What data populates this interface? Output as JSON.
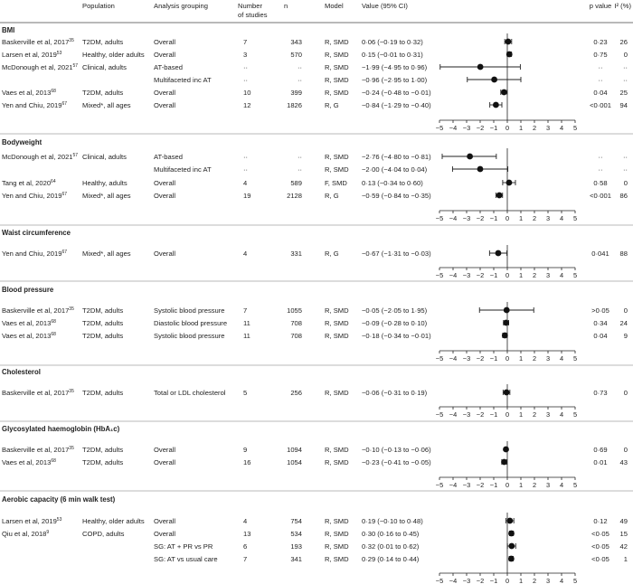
{
  "header": {
    "population": "Population",
    "analysis": "Analysis grouping",
    "studies": [
      "Number",
      "of studies"
    ],
    "n": "n",
    "model": "Model",
    "value": "Value (95% CI)",
    "pvalue": "p value",
    "i2": "I² (%)"
  },
  "axis": {
    "ticks": [
      -5,
      -4,
      -3,
      -2,
      -1,
      0,
      1,
      2,
      3,
      4,
      5
    ]
  },
  "sections": [
    {
      "title": "BMI",
      "rows": [
        {
          "study": "Baskerville et al, 2017",
          "ref": "35",
          "population": "T2DM, adults",
          "analysis": "Overall",
          "studies": "7",
          "n": "343",
          "model": "R, SMD",
          "value": "0·06 (−0·19 to 0·32)",
          "p": "0·23",
          "i2": "26",
          "est": 0.06,
          "lo": -0.19,
          "hi": 0.32
        },
        {
          "study": "Larsen et al, 2019",
          "ref": "53",
          "population": "Healthy, older adults",
          "analysis": "Overall",
          "studies": "3",
          "n": "570",
          "model": "R, SMD",
          "value": "0·15 (−0·01 to 0·31)",
          "p": "0·75",
          "i2": "0",
          "est": 0.15,
          "lo": -0.01,
          "hi": 0.31
        },
        {
          "study": "McDonough et al, 2021",
          "ref": "57",
          "population": "Clinical, adults",
          "analysis": "AT-based",
          "studies": "··",
          "n": "··",
          "model": "R, SMD",
          "value": "−1·99 (−4·95 to 0·96)",
          "p": "··",
          "i2": "··",
          "est": -1.99,
          "lo": -4.95,
          "hi": 0.96
        },
        {
          "study": "",
          "ref": "",
          "population": "",
          "analysis": "Multifaceted inc AT",
          "studies": "··",
          "n": "··",
          "model": "R, SMD",
          "value": "−0·96 (−2·95 to 1·00)",
          "p": "··",
          "i2": "··",
          "est": -0.96,
          "lo": -2.95,
          "hi": 1.0
        },
        {
          "study": "Vaes et al, 2013",
          "ref": "68",
          "population": "T2DM, adults",
          "analysis": "Overall",
          "studies": "10",
          "n": "399",
          "model": "R, SMD",
          "value": "−0·24 (−0·48 to −0·01)",
          "p": "0·04",
          "i2": "25",
          "est": -0.24,
          "lo": -0.48,
          "hi": -0.01
        },
        {
          "study": "Yen and Chiu, 2019",
          "ref": "67",
          "population": "Mixed*, all ages",
          "analysis": "Overall",
          "studies": "12",
          "n": "1826",
          "model": "R, G",
          "value": "−0·84 (−1·29 to −0·40)",
          "p": "<0·001",
          "i2": "94",
          "est": -0.84,
          "lo": -1.29,
          "hi": -0.4
        }
      ]
    },
    {
      "title": "Bodyweight",
      "rows": [
        {
          "study": "McDonough et al, 2021",
          "ref": "57",
          "population": "Clinical, adults",
          "analysis": "AT-based",
          "studies": "··",
          "n": "··",
          "model": "R, SMD",
          "value": "−2·76 (−4·80 to −0·81)",
          "p": "··",
          "i2": "··",
          "est": -2.76,
          "lo": -4.8,
          "hi": -0.81
        },
        {
          "study": "",
          "ref": "",
          "population": "",
          "analysis": "Multifaceted inc AT",
          "studies": "··",
          "n": "··",
          "model": "R, SMD",
          "value": "−2·00 (−4·04 to 0·04)",
          "p": "··",
          "i2": "··",
          "est": -2.0,
          "lo": -4.04,
          "hi": 0.04
        },
        {
          "study": "Tang et al, 2020",
          "ref": "64",
          "population": "Healthy, adults",
          "analysis": "Overall",
          "studies": "4",
          "n": "589",
          "model": "F, SMD",
          "value": "0·13 (−0·34 to 0·60)",
          "p": "0·58",
          "i2": "0",
          "est": 0.13,
          "lo": -0.34,
          "hi": 0.6
        },
        {
          "study": "Yen and Chiu, 2019",
          "ref": "67",
          "population": "Mixed*, all ages",
          "analysis": "Overall",
          "studies": "19",
          "n": "2128",
          "model": "R, G",
          "value": "−0·59 (−0·84 to −0·35)",
          "p": "<0·001",
          "i2": "86",
          "est": -0.59,
          "lo": -0.84,
          "hi": -0.35
        }
      ]
    },
    {
      "title": "Waist circumference",
      "rows": [
        {
          "study": "Yen and Chiu, 2019",
          "ref": "67",
          "population": "Mixed*, all ages",
          "analysis": "Overall",
          "studies": "4",
          "n": "331",
          "model": "R, G",
          "value": "−0·67 (−1·31 to −0·03)",
          "p": "0·041",
          "i2": "88",
          "est": -0.67,
          "lo": -1.31,
          "hi": -0.03
        }
      ]
    },
    {
      "title": "Blood pressure",
      "rows": [
        {
          "study": "Baskerville et al, 2017",
          "ref": "35",
          "population": "T2DM, adults",
          "analysis": "Systolic blood pressure",
          "studies": "7",
          "n": "1055",
          "model": "R, SMD",
          "value": "−0·05 (−2·05 to 1·95)",
          "p": ">0·05",
          "i2": "0",
          "est": -0.05,
          "lo": -2.05,
          "hi": 1.95
        },
        {
          "study": "Vaes et al, 2013",
          "ref": "68",
          "population": "T2DM, adults",
          "analysis": "Diastolic blood pressure",
          "studies": "11",
          "n": "708",
          "model": "R, SMD",
          "value": "−0·09 (−0·28 to 0·10)",
          "p": "0·34",
          "i2": "24",
          "est": -0.09,
          "lo": -0.28,
          "hi": 0.1
        },
        {
          "study": "Vaes et al, 2013",
          "ref": "68",
          "population": "T2DM, adults",
          "analysis": "Systolic blood pressure",
          "studies": "11",
          "n": "708",
          "model": "R, SMD",
          "value": "−0·18 (−0·34 to −0·01)",
          "p": "0·04",
          "i2": "9",
          "est": -0.18,
          "lo": -0.34,
          "hi": -0.01
        }
      ]
    },
    {
      "title": "Cholesterol",
      "rows": [
        {
          "study": "Baskerville et al, 2017",
          "ref": "35",
          "population": "T2DM, adults",
          "analysis": "Total or LDL cholesterol",
          "studies": "5",
          "n": "256",
          "model": "R, SMD",
          "value": "−0·06 (−0·31 to 0·19)",
          "p": "0·73",
          "i2": "0",
          "est": -0.06,
          "lo": -0.31,
          "hi": 0.19
        }
      ]
    },
    {
      "title": "Glycosylated haemoglobin (HbA₁c)",
      "rows": [
        {
          "study": "Baskerville et al, 2017",
          "ref": "35",
          "population": "T2DM, adults",
          "analysis": "Overall",
          "studies": "9",
          "n": "1094",
          "model": "R, SMD",
          "value": "−0·10 (−0·13 to −0·06)",
          "p": "0·69",
          "i2": "0",
          "est": -0.1,
          "lo": -0.13,
          "hi": -0.06
        },
        {
          "study": "Vaes et al, 2013",
          "ref": "68",
          "population": "T2DM, adults",
          "analysis": "Overall",
          "studies": "16",
          "n": "1054",
          "model": "R, SMD",
          "value": "−0·23 (−0·41 to −0·05)",
          "p": "0·01",
          "i2": "43",
          "est": -0.23,
          "lo": -0.41,
          "hi": -0.05
        }
      ]
    },
    {
      "title": "Aerobic capacity (6 min walk test)",
      "rows": [
        {
          "study": "Larsen et al, 2019",
          "ref": "53",
          "population": "Healthy, older adults",
          "analysis": "Overall",
          "studies": "4",
          "n": "754",
          "model": "R, SMD",
          "value": "0·19 (−0·10 to 0·48)",
          "p": "0·12",
          "i2": "49",
          "est": 0.19,
          "lo": -0.1,
          "hi": 0.48
        },
        {
          "study": "Qiu et al, 2018",
          "ref": "9",
          "population": "COPD, adults",
          "analysis": "Overall",
          "studies": "13",
          "n": "534",
          "model": "R, SMD",
          "value": "0·30 (0·16 to 0·45)",
          "p": "<0·05",
          "i2": "15",
          "est": 0.3,
          "lo": 0.16,
          "hi": 0.45
        },
        {
          "study": "",
          "ref": "",
          "population": "",
          "analysis": "SG: AT + PR vs PR",
          "studies": "6",
          "n": "193",
          "model": "R, SMD",
          "value": "0·32 (0·01 to 0·62)",
          "p": "<0·05",
          "i2": "42",
          "est": 0.32,
          "lo": 0.01,
          "hi": 0.62
        },
        {
          "study": "",
          "ref": "",
          "population": "",
          "analysis": "SG: AT vs usual care",
          "studies": "7",
          "n": "341",
          "model": "R, SMD",
          "value": "0·29 (0·14 to 0·44)",
          "p": "<0·05",
          "i2": "1",
          "est": 0.29,
          "lo": 0.14,
          "hi": 0.44
        }
      ]
    }
  ],
  "chart_data": {
    "type": "forest",
    "xlim": [
      -5,
      5
    ],
    "reference_line": 0,
    "note": "Effect sizes with 95% CI per outcome section"
  }
}
